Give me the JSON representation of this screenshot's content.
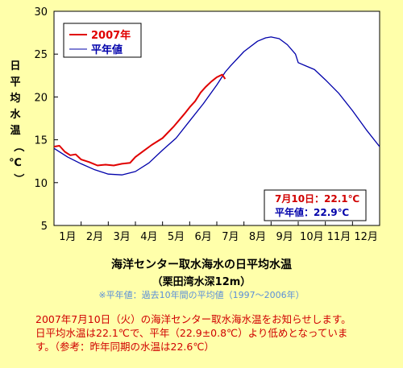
{
  "chart_data": {
    "type": "line",
    "ylabel": "日平均水温（℃）",
    "ylim": [
      5,
      30
    ],
    "yticks": [
      5,
      10,
      15,
      20,
      25,
      30
    ],
    "x_tick_labels": [
      "1月",
      "2月",
      "3月",
      "4月",
      "5月",
      "6月",
      "7月",
      "8月",
      "9月",
      "10月",
      "11月",
      "12月"
    ],
    "grid": false,
    "legend_position": "top-left",
    "series": [
      {
        "name": "2007年",
        "color": "#E00000",
        "x_month": [
          0.0,
          0.2,
          0.4,
          0.6,
          0.8,
          1.0,
          1.3,
          1.6,
          1.9,
          2.2,
          2.5,
          2.8,
          3.0,
          3.3,
          3.6,
          4.0,
          4.4,
          4.8,
          5.0,
          5.2,
          5.4,
          5.6,
          5.8,
          6.0,
          6.2,
          6.31
        ],
        "values": [
          14.2,
          14.3,
          13.6,
          13.2,
          13.3,
          12.7,
          12.4,
          12.0,
          12.1,
          12.0,
          12.2,
          12.3,
          13.0,
          13.7,
          14.4,
          15.2,
          16.5,
          18.0,
          18.8,
          19.5,
          20.5,
          21.2,
          21.8,
          22.3,
          22.6,
          22.1
        ]
      },
      {
        "name": "平年値",
        "color": "#0000AA",
        "x_month": [
          0.0,
          0.5,
          1.0,
          1.5,
          2.0,
          2.5,
          3.0,
          3.5,
          4.0,
          4.5,
          5.0,
          5.5,
          6.0,
          6.31,
          6.5,
          7.0,
          7.5,
          7.8,
          8.0,
          8.3,
          8.6,
          8.9,
          9.0,
          9.3,
          9.6,
          10.0,
          10.5,
          11.0,
          11.5,
          12.0
        ],
        "values": [
          14.0,
          13.0,
          12.2,
          11.5,
          11.0,
          10.9,
          11.3,
          12.3,
          13.8,
          15.2,
          17.2,
          19.2,
          21.4,
          22.9,
          23.6,
          25.3,
          26.5,
          26.9,
          27.0,
          26.8,
          26.1,
          25.0,
          24.0,
          23.6,
          23.2,
          22.0,
          20.4,
          18.4,
          16.2,
          14.2
        ]
      }
    ],
    "info_box": {
      "current": "7月10日：22.1℃",
      "normal": "平年値：22.9℃"
    }
  },
  "caption": {
    "title": "海洋センター取水海水の日平均水温",
    "subtitle": "（栗田湾水深12m）",
    "note": "※平年値：過去10年間の平均値（1997～2006年）"
  },
  "notice": [
    "2007年7月10日（火）の海洋センター取水海水温をお知らせします。",
    "日平均水温は22.1℃で、平年（22.9±0.8℃）より低めとなっていま",
    "す。（参考：昨年同期の水温は22.6℃）"
  ]
}
